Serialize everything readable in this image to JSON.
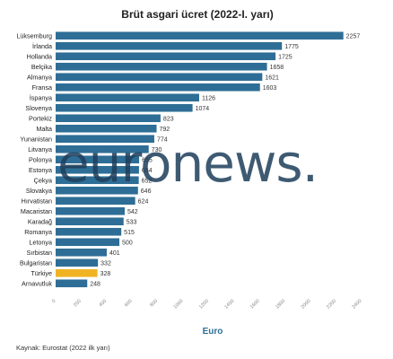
{
  "chart_data": {
    "type": "bar",
    "orientation": "horizontal",
    "title": "Brüt asgari ücret (2022-I. yarı)",
    "xlabel": "Euro",
    "ylabel": "",
    "xlim": [
      0,
      2400
    ],
    "xticks": [
      0,
      200,
      400,
      600,
      800,
      1000,
      1200,
      1400,
      1600,
      1800,
      2000,
      2200,
      2400
    ],
    "grid": false,
    "legend": "none",
    "colors": {
      "bar": "#2e6e96",
      "highlight": "#f0b323",
      "highlight_category": "Türkiye",
      "xlabel": "#2e6e96"
    },
    "categories": [
      "Lüksemburg",
      "İrlanda",
      "Hollanda",
      "Belçika",
      "Almanya",
      "Fransa",
      "İspanya",
      "Slovenya",
      "Portekiz",
      "Malta",
      "Yunanistan",
      "Litvanya",
      "Polonya",
      "Estonya",
      "Çekya",
      "Slovakya",
      "Hırvatistan",
      "Macaristan",
      "Karadağ",
      "Romanya",
      "Letonya",
      "Sırbistan",
      "Bulgaristan",
      "Türkiye",
      "Arnavutluk"
    ],
    "values": [
      2257,
      1775,
      1725,
      1658,
      1621,
      1603,
      1126,
      1074,
      823,
      792,
      774,
      730,
      655,
      654,
      652,
      646,
      624,
      542,
      533,
      515,
      500,
      401,
      332,
      328,
      248
    ]
  },
  "watermark": "euronews.",
  "source": "Kaynak: Eurostat (2022 ilk yarı)"
}
